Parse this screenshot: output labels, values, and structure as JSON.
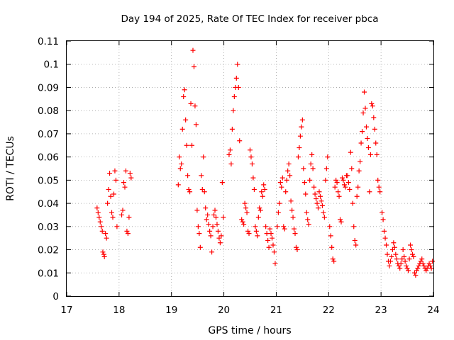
{
  "chart_data": {
    "type": "scatter",
    "title": "Day 194 of 2025, Rate Of TEC Index for receiver pbca",
    "xlabel": "GPS time / hours",
    "ylabel": "ROTI / TECUs",
    "xlim": [
      17,
      24
    ],
    "ylim": [
      0,
      0.11
    ],
    "xticks": [
      17,
      18,
      19,
      20,
      21,
      22,
      23,
      24
    ],
    "yticks": [
      0,
      0.01,
      0.02,
      0.03,
      0.04,
      0.05,
      0.06,
      0.07,
      0.08,
      0.09,
      0.1,
      0.11
    ],
    "xtick_labels": [
      "17",
      "18",
      "19",
      "20",
      "21",
      "22",
      "23",
      "24"
    ],
    "ytick_labels": [
      "0",
      "0.01",
      "0.02",
      "0.03",
      "0.04",
      "0.05",
      "0.06",
      "0.07",
      "0.08",
      "0.09",
      "0.1",
      "0.11"
    ],
    "grid": true,
    "marker": "+",
    "marker_color": "#ff0000",
    "series": [
      {
        "points": [
          [
            17.58,
            0.038
          ],
          [
            17.6,
            0.036
          ],
          [
            17.62,
            0.034
          ],
          [
            17.64,
            0.032
          ],
          [
            17.66,
            0.03
          ],
          [
            17.68,
            0.028
          ],
          [
            17.69,
            0.019
          ],
          [
            17.71,
            0.018
          ],
          [
            17.72,
            0.017
          ],
          [
            17.74,
            0.027
          ],
          [
            17.76,
            0.025
          ],
          [
            17.78,
            0.04
          ],
          [
            17.8,
            0.046
          ],
          [
            17.82,
            0.053
          ],
          [
            17.84,
            0.043
          ],
          [
            17.86,
            0.036
          ],
          [
            17.88,
            0.034
          ],
          [
            17.9,
            0.044
          ],
          [
            17.92,
            0.054
          ],
          [
            17.94,
            0.05
          ],
          [
            17.96,
            0.03
          ],
          [
            18.05,
            0.035
          ],
          [
            18.07,
            0.037
          ],
          [
            18.09,
            0.049
          ],
          [
            18.11,
            0.047
          ],
          [
            18.13,
            0.054
          ],
          [
            18.15,
            0.028
          ],
          [
            18.17,
            0.027
          ],
          [
            18.19,
            0.034
          ],
          [
            18.21,
            0.053
          ],
          [
            18.23,
            0.051
          ],
          [
            19.13,
            0.048
          ],
          [
            19.15,
            0.06
          ],
          [
            19.17,
            0.055
          ],
          [
            19.19,
            0.057
          ],
          [
            19.21,
            0.072
          ],
          [
            19.23,
            0.086
          ],
          [
            19.25,
            0.089
          ],
          [
            19.27,
            0.076
          ],
          [
            19.29,
            0.065
          ],
          [
            19.31,
            0.052
          ],
          [
            19.33,
            0.046
          ],
          [
            19.35,
            0.045
          ],
          [
            19.37,
            0.083
          ],
          [
            19.39,
            0.065
          ],
          [
            19.41,
            0.106
          ],
          [
            19.43,
            0.099
          ],
          [
            19.45,
            0.082
          ],
          [
            19.47,
            0.074
          ],
          [
            19.49,
            0.037
          ],
          [
            19.51,
            0.03
          ],
          [
            19.53,
            0.027
          ],
          [
            19.55,
            0.021
          ],
          [
            19.57,
            0.052
          ],
          [
            19.59,
            0.046
          ],
          [
            19.61,
            0.06
          ],
          [
            19.63,
            0.045
          ],
          [
            19.65,
            0.038
          ],
          [
            19.67,
            0.033
          ],
          [
            19.69,
            0.035
          ],
          [
            19.71,
            0.031
          ],
          [
            19.73,
            0.028
          ],
          [
            19.75,
            0.026
          ],
          [
            19.77,
            0.019
          ],
          [
            19.79,
            0.03
          ],
          [
            19.81,
            0.035
          ],
          [
            19.83,
            0.037
          ],
          [
            19.85,
            0.034
          ],
          [
            19.87,
            0.031
          ],
          [
            19.89,
            0.028
          ],
          [
            19.91,
            0.025
          ],
          [
            19.93,
            0.023
          ],
          [
            19.95,
            0.026
          ],
          [
            19.97,
            0.049
          ],
          [
            19.99,
            0.034
          ],
          [
            20.1,
            0.061
          ],
          [
            20.12,
            0.063
          ],
          [
            20.14,
            0.057
          ],
          [
            20.16,
            0.072
          ],
          [
            20.18,
            0.08
          ],
          [
            20.2,
            0.086
          ],
          [
            20.22,
            0.09
          ],
          [
            20.24,
            0.094
          ],
          [
            20.26,
            0.1
          ],
          [
            20.28,
            0.09
          ],
          [
            20.3,
            0.067
          ],
          [
            20.34,
            0.033
          ],
          [
            20.36,
            0.032
          ],
          [
            20.38,
            0.031
          ],
          [
            20.4,
            0.04
          ],
          [
            20.42,
            0.038
          ],
          [
            20.44,
            0.036
          ],
          [
            20.46,
            0.028
          ],
          [
            20.48,
            0.027
          ],
          [
            20.5,
            0.063
          ],
          [
            20.52,
            0.06
          ],
          [
            20.54,
            0.057
          ],
          [
            20.56,
            0.051
          ],
          [
            20.58,
            0.046
          ],
          [
            20.6,
            0.03
          ],
          [
            20.62,
            0.028
          ],
          [
            20.64,
            0.026
          ],
          [
            20.66,
            0.034
          ],
          [
            20.68,
            0.038
          ],
          [
            20.7,
            0.037
          ],
          [
            20.72,
            0.045
          ],
          [
            20.74,
            0.043
          ],
          [
            20.76,
            0.048
          ],
          [
            20.78,
            0.046
          ],
          [
            20.8,
            0.03
          ],
          [
            20.82,
            0.027
          ],
          [
            20.84,
            0.024
          ],
          [
            20.86,
            0.021
          ],
          [
            20.88,
            0.029
          ],
          [
            20.9,
            0.027
          ],
          [
            20.92,
            0.025
          ],
          [
            20.94,
            0.022
          ],
          [
            20.96,
            0.019
          ],
          [
            20.98,
            0.014
          ],
          [
            21.02,
            0.03
          ],
          [
            21.04,
            0.036
          ],
          [
            21.06,
            0.04
          ],
          [
            21.08,
            0.049
          ],
          [
            21.1,
            0.047
          ],
          [
            21.12,
            0.051
          ],
          [
            21.14,
            0.03
          ],
          [
            21.16,
            0.029
          ],
          [
            21.18,
            0.045
          ],
          [
            21.2,
            0.05
          ],
          [
            21.22,
            0.054
          ],
          [
            21.24,
            0.057
          ],
          [
            21.26,
            0.052
          ],
          [
            21.28,
            0.041
          ],
          [
            21.3,
            0.037
          ],
          [
            21.32,
            0.034
          ],
          [
            21.34,
            0.029
          ],
          [
            21.36,
            0.027
          ],
          [
            21.38,
            0.021
          ],
          [
            21.4,
            0.02
          ],
          [
            21.42,
            0.06
          ],
          [
            21.44,
            0.064
          ],
          [
            21.46,
            0.069
          ],
          [
            21.48,
            0.073
          ],
          [
            21.5,
            0.076
          ],
          [
            21.52,
            0.055
          ],
          [
            21.54,
            0.049
          ],
          [
            21.56,
            0.044
          ],
          [
            21.58,
            0.036
          ],
          [
            21.6,
            0.033
          ],
          [
            21.62,
            0.031
          ],
          [
            21.64,
            0.05
          ],
          [
            21.66,
            0.057
          ],
          [
            21.68,
            0.061
          ],
          [
            21.7,
            0.055
          ],
          [
            21.72,
            0.047
          ],
          [
            21.74,
            0.044
          ],
          [
            21.76,
            0.042
          ],
          [
            21.78,
            0.04
          ],
          [
            21.8,
            0.038
          ],
          [
            21.82,
            0.045
          ],
          [
            21.84,
            0.043
          ],
          [
            21.86,
            0.041
          ],
          [
            21.88,
            0.039
          ],
          [
            21.9,
            0.036
          ],
          [
            21.92,
            0.034
          ],
          [
            21.94,
            0.05
          ],
          [
            21.96,
            0.055
          ],
          [
            21.98,
            0.06
          ],
          [
            22.02,
            0.03
          ],
          [
            22.04,
            0.026
          ],
          [
            22.06,
            0.021
          ],
          [
            22.08,
            0.016
          ],
          [
            22.1,
            0.015
          ],
          [
            22.12,
            0.047
          ],
          [
            22.14,
            0.05
          ],
          [
            22.16,
            0.049
          ],
          [
            22.18,
            0.045
          ],
          [
            22.2,
            0.043
          ],
          [
            22.22,
            0.033
          ],
          [
            22.24,
            0.032
          ],
          [
            22.26,
            0.051
          ],
          [
            22.28,
            0.05
          ],
          [
            22.3,
            0.048
          ],
          [
            22.32,
            0.047
          ],
          [
            22.34,
            0.052
          ],
          [
            22.36,
            0.052
          ],
          [
            22.38,
            0.049
          ],
          [
            22.4,
            0.046
          ],
          [
            22.42,
            0.062
          ],
          [
            22.44,
            0.055
          ],
          [
            22.46,
            0.04
          ],
          [
            22.48,
            0.03
          ],
          [
            22.5,
            0.024
          ],
          [
            22.52,
            0.022
          ],
          [
            22.54,
            0.043
          ],
          [
            22.56,
            0.047
          ],
          [
            22.58,
            0.054
          ],
          [
            22.6,
            0.058
          ],
          [
            22.62,
            0.066
          ],
          [
            22.64,
            0.071
          ],
          [
            22.66,
            0.079
          ],
          [
            22.68,
            0.088
          ],
          [
            22.7,
            0.081
          ],
          [
            22.72,
            0.073
          ],
          [
            22.74,
            0.068
          ],
          [
            22.76,
            0.064
          ],
          [
            22.78,
            0.045
          ],
          [
            22.8,
            0.061
          ],
          [
            22.82,
            0.083
          ],
          [
            22.84,
            0.082
          ],
          [
            22.86,
            0.077
          ],
          [
            22.88,
            0.072
          ],
          [
            22.9,
            0.066
          ],
          [
            22.92,
            0.061
          ],
          [
            22.94,
            0.05
          ],
          [
            22.96,
            0.047
          ],
          [
            22.98,
            0.045
          ],
          [
            23.02,
            0.036
          ],
          [
            23.04,
            0.033
          ],
          [
            23.06,
            0.028
          ],
          [
            23.08,
            0.025
          ],
          [
            23.1,
            0.022
          ],
          [
            23.12,
            0.018
          ],
          [
            23.14,
            0.015
          ],
          [
            23.16,
            0.013
          ],
          [
            23.18,
            0.015
          ],
          [
            23.2,
            0.017
          ],
          [
            23.22,
            0.02
          ],
          [
            23.24,
            0.023
          ],
          [
            23.26,
            0.021
          ],
          [
            23.28,
            0.018
          ],
          [
            23.3,
            0.016
          ],
          [
            23.32,
            0.014
          ],
          [
            23.34,
            0.013
          ],
          [
            23.36,
            0.012
          ],
          [
            23.38,
            0.014
          ],
          [
            23.4,
            0.016
          ],
          [
            23.42,
            0.02
          ],
          [
            23.44,
            0.017
          ],
          [
            23.46,
            0.015
          ],
          [
            23.48,
            0.013
          ],
          [
            23.5,
            0.012
          ],
          [
            23.52,
            0.011
          ],
          [
            23.54,
            0.016
          ],
          [
            23.56,
            0.022
          ],
          [
            23.58,
            0.02
          ],
          [
            23.6,
            0.018
          ],
          [
            23.62,
            0.017
          ],
          [
            23.64,
            0.01
          ],
          [
            23.66,
            0.009
          ],
          [
            23.68,
            0.011
          ],
          [
            23.7,
            0.012
          ],
          [
            23.72,
            0.013
          ],
          [
            23.74,
            0.014
          ],
          [
            23.76,
            0.015
          ],
          [
            23.78,
            0.016
          ],
          [
            23.8,
            0.014
          ],
          [
            23.82,
            0.013
          ],
          [
            23.84,
            0.012
          ],
          [
            23.86,
            0.011
          ],
          [
            23.88,
            0.012
          ],
          [
            23.9,
            0.013
          ],
          [
            23.92,
            0.014
          ],
          [
            23.94,
            0.013
          ],
          [
            23.96,
            0.012
          ],
          [
            23.98,
            0.015
          ]
        ]
      }
    ]
  }
}
